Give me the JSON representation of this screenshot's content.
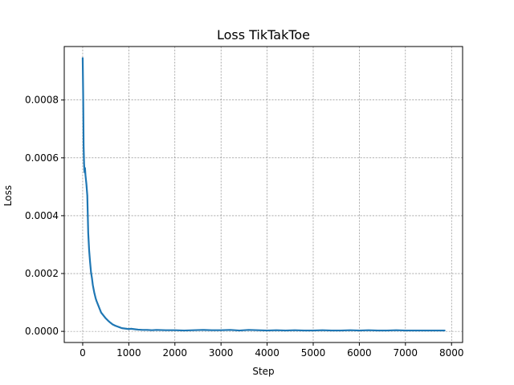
{
  "chart_data": {
    "type": "line",
    "title": "Loss TikTakToe",
    "xlabel": "Step",
    "ylabel": "Loss",
    "xlim": [
      -400,
      8240
    ],
    "ylim": [
      -3.85e-05,
      0.000985
    ],
    "xticks": [
      0,
      1000,
      2000,
      3000,
      4000,
      5000,
      6000,
      7000,
      8000
    ],
    "xtick_labels": [
      "0",
      "1000",
      "2000",
      "3000",
      "4000",
      "5000",
      "6000",
      "7000",
      "8000"
    ],
    "yticks": [
      0.0,
      0.0002,
      0.0004,
      0.0006,
      0.0008
    ],
    "ytick_labels": [
      "0.0000",
      "0.0002",
      "0.0004",
      "0.0006",
      "0.0008"
    ],
    "grid": true,
    "series": [
      {
        "color": "#1f77b4",
        "x": [
          0,
          10,
          20,
          30,
          40,
          50,
          60,
          80,
          100,
          120,
          140,
          160,
          180,
          200,
          220,
          250,
          280,
          300,
          350,
          400,
          450,
          500,
          550,
          600,
          650,
          700,
          750,
          800,
          850,
          900,
          950,
          1000,
          1050,
          1100,
          1150,
          1200,
          1300,
          1400,
          1500,
          1600,
          1800,
          2000,
          2200,
          2400,
          2600,
          2800,
          3000,
          3200,
          3400,
          3600,
          3800,
          4000,
          4200,
          4400,
          4600,
          4800,
          5000,
          5200,
          5400,
          5600,
          5800,
          6000,
          6200,
          6400,
          6600,
          6800,
          7000,
          7200,
          7400,
          7600,
          7850
        ],
        "y": [
          0.000945,
          0.00082,
          0.00064,
          0.00058,
          0.00055,
          0.000565,
          0.00054,
          0.00051,
          0.00047,
          0.00034,
          0.00028,
          0.00024,
          0.000205,
          0.000185,
          0.00016,
          0.000135,
          0.000115,
          0.000105,
          8.5e-05,
          6.5e-05,
          5.5e-05,
          4.5e-05,
          3.7e-05,
          3e-05,
          2.4e-05,
          2e-05,
          1.7e-05,
          1.4e-05,
          1.1e-05,
          1e-05,
          9e-06,
          8e-06,
          9e-06,
          8e-06,
          7e-06,
          6e-06,
          5e-06,
          5e-06,
          4e-06,
          5e-06,
          4e-06,
          4e-06,
          3e-06,
          4e-06,
          5e-06,
          4e-06,
          4e-06,
          5e-06,
          3e-06,
          5e-06,
          4e-06,
          3e-06,
          4e-06,
          3e-06,
          4e-06,
          3e-06,
          3e-06,
          4e-06,
          3e-06,
          3e-06,
          4e-06,
          3e-06,
          4e-06,
          3e-06,
          3e-06,
          4e-06,
          3e-06,
          3e-06,
          3e-06,
          3e-06,
          3e-06
        ]
      }
    ]
  }
}
